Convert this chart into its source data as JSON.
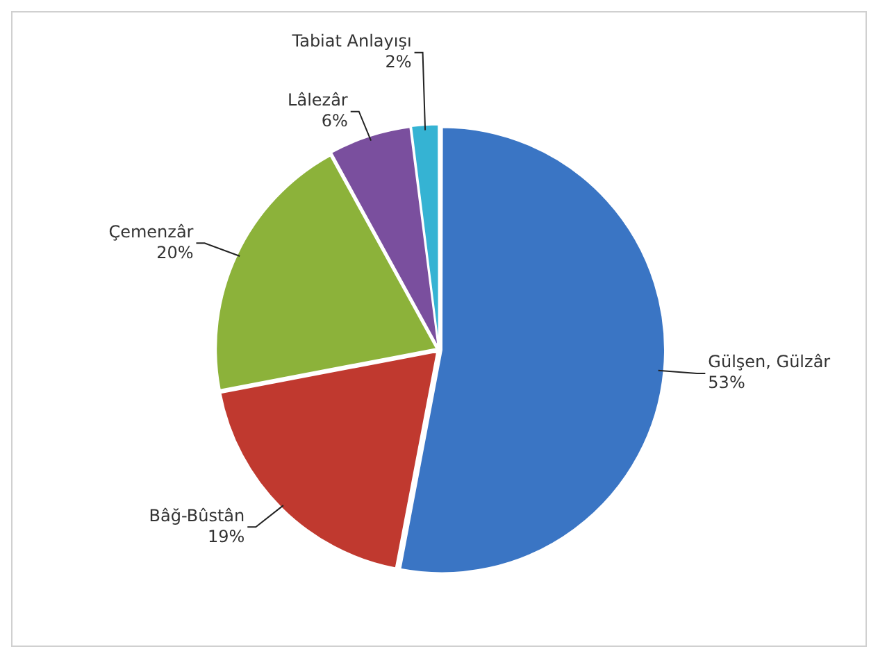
{
  "chart_data": {
    "type": "pie",
    "categories": [
      "Gülşen, Gülzâr",
      "Bâğ-Bûstân",
      "Çemenzâr",
      "Lâlezâr",
      "Tabiat Anlayışı"
    ],
    "values": [
      53,
      19,
      20,
      6,
      2
    ],
    "value_labels": [
      "53%",
      "19%",
      "20%",
      "6%",
      "2%"
    ],
    "colors": [
      "#3a75c4",
      "#c0392f",
      "#8cb23a",
      "#7a4f9e",
      "#35b3d3"
    ],
    "legend": false
  }
}
